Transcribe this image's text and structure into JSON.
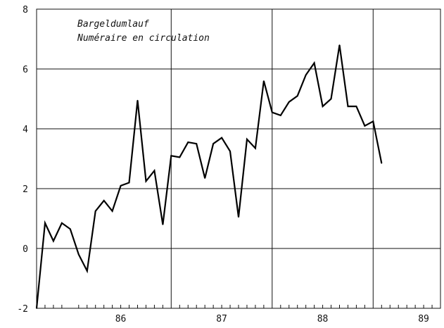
{
  "chart_data": {
    "type": "line",
    "title": "",
    "annotation_lines": [
      "Bargeldumlauf",
      "Numéraire en circulation"
    ],
    "xlabel": "",
    "ylabel": "",
    "ylim": [
      -2,
      8
    ],
    "yticks": [
      -2,
      0,
      2,
      4,
      6,
      8
    ],
    "ytick_labels": [
      "-2",
      "0",
      "2",
      "4",
      "6",
      "8"
    ],
    "xlim": [
      1985.667,
      1989.667
    ],
    "year_label_positions": [
      1986.5,
      1987.5,
      1988.5,
      1989.5
    ],
    "year_labels": [
      "86",
      "87",
      "88",
      "89"
    ],
    "year_gridlines": [
      1987,
      1988,
      1989
    ],
    "grid": true,
    "series": [
      {
        "start": 1985.667,
        "step_months": 1,
        "values": [
          -2.0,
          0.85,
          0.25,
          0.85,
          0.65,
          -0.2,
          -0.75,
          1.25,
          1.6,
          1.25,
          2.1,
          2.2,
          4.95,
          2.25,
          2.6,
          0.8,
          3.1,
          3.05,
          3.55,
          3.5,
          2.35,
          3.5,
          3.7,
          3.25,
          1.05,
          3.65,
          3.35,
          5.6,
          4.55,
          4.45,
          4.9,
          5.1,
          5.8,
          6.2,
          4.75,
          5.0,
          6.8,
          4.75,
          4.75,
          4.1,
          4.25,
          2.85
        ]
      }
    ]
  }
}
